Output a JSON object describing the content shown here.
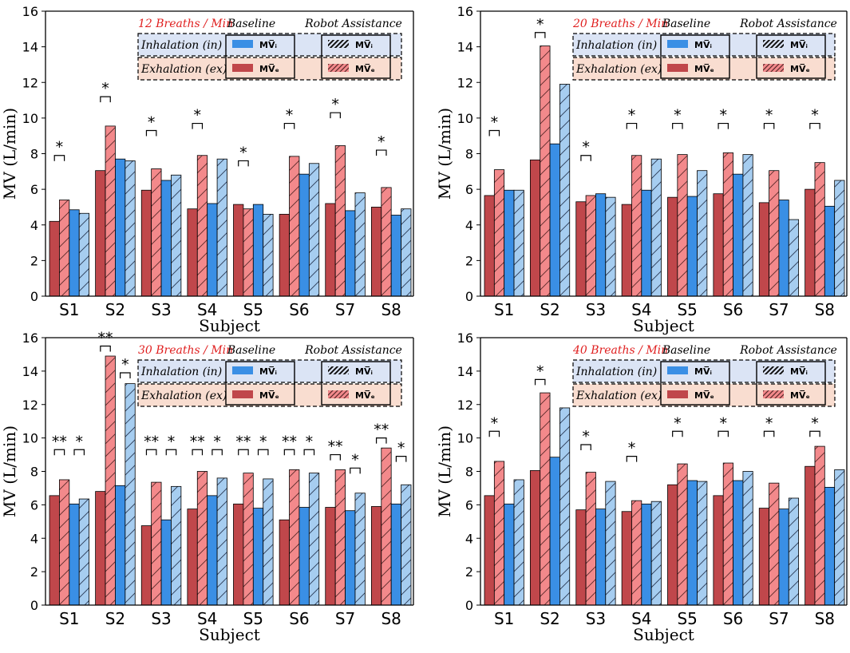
{
  "figure": {
    "axis": {
      "ylabel": "MV (L/min)",
      "xlabel": "Subject",
      "ylim": [
        0,
        16
      ],
      "yticks": [
        "0",
        "2",
        "4",
        "6",
        "8",
        "10",
        "12",
        "14",
        "16"
      ]
    },
    "legend": {
      "baseline": "Baseline",
      "robot": "Robot Assistance",
      "inhalation": "Inhalation (in)",
      "exhalation": "Exhalation (ex)",
      "mvi": "MV̅ᵢ",
      "mve": "MV̅ₑ"
    },
    "colors": {
      "exhalation": "#c0474b",
      "exhalation_robot": "#f3898b",
      "inhalation": "#3a8fe5",
      "inhalation_robot": "#a6cdf0",
      "inhalation_band": "#dbe4f5",
      "exhalation_band": "#f9ddd0",
      "title": "#e02020"
    }
  },
  "chart_data": [
    {
      "type": "bar",
      "title": "12 Breaths / Min",
      "xlabel": "Subject",
      "ylabel": "MV (L/min)",
      "ylim": [
        0,
        16
      ],
      "categories": [
        "S1",
        "S2",
        "S3",
        "S4",
        "S5",
        "S6",
        "S7",
        "S8"
      ],
      "series": [
        {
          "name": "Baseline MVe",
          "values": [
            4.2,
            7.05,
            5.95,
            4.9,
            5.15,
            4.6,
            5.2,
            5.0
          ]
        },
        {
          "name": "Robot Assistance MVe",
          "values": [
            5.4,
            9.55,
            7.15,
            7.9,
            4.9,
            7.85,
            8.45,
            6.1
          ]
        },
        {
          "name": "Baseline MVi",
          "values": [
            4.85,
            7.7,
            6.5,
            5.2,
            5.15,
            6.85,
            4.8,
            4.55
          ]
        },
        {
          "name": "Robot Assistance MVi",
          "values": [
            4.65,
            7.6,
            6.8,
            7.7,
            4.6,
            7.45,
            5.8,
            4.9
          ]
        }
      ],
      "annotations": [
        {
          "subject": "S1",
          "pair": "ex",
          "label": "*",
          "level": 7.9
        },
        {
          "subject": "S2",
          "pair": "ex",
          "label": "*",
          "level": 11.2
        },
        {
          "subject": "S3",
          "pair": "ex",
          "label": "*",
          "level": 9.3
        },
        {
          "subject": "S4",
          "pair": "ex",
          "label": "*",
          "level": 9.7
        },
        {
          "subject": "S5",
          "pair": "ex",
          "label": "*",
          "level": 7.6
        },
        {
          "subject": "S6",
          "pair": "ex",
          "label": "*",
          "level": 9.7
        },
        {
          "subject": "S7",
          "pair": "ex",
          "label": "*",
          "level": 10.3
        },
        {
          "subject": "S8",
          "pair": "ex",
          "label": "*",
          "level": 8.2
        }
      ]
    },
    {
      "type": "bar",
      "title": "20 Breaths / Min",
      "xlabel": "Subject",
      "ylabel": "MV (L/min)",
      "ylim": [
        0,
        16
      ],
      "categories": [
        "S1",
        "S2",
        "S3",
        "S4",
        "S5",
        "S6",
        "S7",
        "S8"
      ],
      "series": [
        {
          "name": "Baseline MVe",
          "values": [
            5.65,
            7.65,
            5.3,
            5.15,
            5.55,
            5.75,
            5.25,
            6.0
          ]
        },
        {
          "name": "Robot Assistance MVe",
          "values": [
            7.1,
            14.05,
            5.65,
            7.9,
            7.95,
            8.05,
            7.05,
            7.5
          ]
        },
        {
          "name": "Baseline MVi",
          "values": [
            5.95,
            8.55,
            5.75,
            5.95,
            5.6,
            6.85,
            5.4,
            5.05
          ]
        },
        {
          "name": "Robot Assistance MVi",
          "values": [
            5.95,
            11.9,
            5.55,
            7.7,
            7.05,
            7.95,
            4.3,
            6.5
          ]
        }
      ],
      "annotations": [
        {
          "subject": "S1",
          "pair": "ex",
          "label": "*",
          "level": 9.3
        },
        {
          "subject": "S2",
          "pair": "ex",
          "label": "*",
          "level": 14.8
        },
        {
          "subject": "S3",
          "pair": "ex",
          "label": "*",
          "level": 7.9
        },
        {
          "subject": "S4",
          "pair": "ex",
          "label": "*",
          "level": 9.7
        },
        {
          "subject": "S5",
          "pair": "ex",
          "label": "*",
          "level": 9.7
        },
        {
          "subject": "S6",
          "pair": "ex",
          "label": "*",
          "level": 9.7
        },
        {
          "subject": "S7",
          "pair": "ex",
          "label": "*",
          "level": 9.7
        },
        {
          "subject": "S8",
          "pair": "ex",
          "label": "*",
          "level": 9.7
        }
      ]
    },
    {
      "type": "bar",
      "title": "30 Breaths / Min",
      "xlabel": "Subject",
      "ylabel": "MV (L/min)",
      "ylim": [
        0,
        16
      ],
      "categories": [
        "S1",
        "S2",
        "S3",
        "S4",
        "S5",
        "S6",
        "S7",
        "S8"
      ],
      "series": [
        {
          "name": "Baseline MVe",
          "values": [
            6.55,
            6.8,
            4.75,
            5.75,
            6.05,
            5.1,
            5.85,
            5.9
          ]
        },
        {
          "name": "Robot Assistance MVe",
          "values": [
            7.5,
            14.9,
            7.35,
            8.0,
            7.9,
            8.1,
            8.1,
            9.4
          ]
        },
        {
          "name": "Baseline MVi",
          "values": [
            6.05,
            7.15,
            5.1,
            6.55,
            5.8,
            5.85,
            5.65,
            6.05
          ]
        },
        {
          "name": "Robot Assistance MVi",
          "values": [
            6.35,
            13.25,
            7.1,
            7.6,
            7.55,
            7.9,
            6.7,
            7.2
          ]
        }
      ],
      "annotations": [
        {
          "subject": "S1",
          "pair": "ex",
          "label": "**",
          "level": 9.3
        },
        {
          "subject": "S1",
          "pair": "in",
          "label": "*",
          "level": 9.3
        },
        {
          "subject": "S2",
          "pair": "ex",
          "label": "**",
          "level": 15.5
        },
        {
          "subject": "S2",
          "pair": "in",
          "label": "*",
          "level": 13.9
        },
        {
          "subject": "S3",
          "pair": "ex",
          "label": "**",
          "level": 9.3
        },
        {
          "subject": "S3",
          "pair": "in",
          "label": "*",
          "level": 9.3
        },
        {
          "subject": "S4",
          "pair": "ex",
          "label": "**",
          "level": 9.3
        },
        {
          "subject": "S4",
          "pair": "in",
          "label": "*",
          "level": 9.3
        },
        {
          "subject": "S5",
          "pair": "ex",
          "label": "**",
          "level": 9.3
        },
        {
          "subject": "S5",
          "pair": "in",
          "label": "*",
          "level": 9.3
        },
        {
          "subject": "S6",
          "pair": "ex",
          "label": "**",
          "level": 9.3
        },
        {
          "subject": "S6",
          "pair": "in",
          "label": "*",
          "level": 9.3
        },
        {
          "subject": "S7",
          "pair": "ex",
          "label": "**",
          "level": 9.0
        },
        {
          "subject": "S7",
          "pair": "in",
          "label": "*",
          "level": 8.2
        },
        {
          "subject": "S8",
          "pair": "ex",
          "label": "**",
          "level": 10.0
        },
        {
          "subject": "S8",
          "pair": "in",
          "label": "*",
          "level": 8.9
        }
      ]
    },
    {
      "type": "bar",
      "title": "40 Breaths / Min",
      "xlabel": "Subject",
      "ylabel": "MV (L/min)",
      "ylim": [
        0,
        16
      ],
      "categories": [
        "S1",
        "S2",
        "S3",
        "S4",
        "S5",
        "S6",
        "S7",
        "S8"
      ],
      "series": [
        {
          "name": "Baseline MVe",
          "values": [
            6.55,
            8.05,
            5.7,
            5.6,
            7.2,
            6.55,
            5.8,
            8.3
          ]
        },
        {
          "name": "Robot Assistance MVe",
          "values": [
            8.6,
            12.7,
            7.95,
            6.25,
            8.45,
            8.5,
            7.3,
            9.5
          ]
        },
        {
          "name": "Baseline MVi",
          "values": [
            6.05,
            8.85,
            5.75,
            6.05,
            7.45,
            7.45,
            5.75,
            7.05
          ]
        },
        {
          "name": "Robot Assistance MVi",
          "values": [
            7.5,
            11.8,
            7.4,
            6.2,
            7.4,
            8.0,
            6.4,
            8.1
          ]
        }
      ],
      "annotations": [
        {
          "subject": "S1",
          "pair": "ex",
          "label": "*",
          "level": 10.4
        },
        {
          "subject": "S2",
          "pair": "ex",
          "label": "*",
          "level": 13.5
        },
        {
          "subject": "S3",
          "pair": "ex",
          "label": "*",
          "level": 9.6
        },
        {
          "subject": "S4",
          "pair": "ex",
          "label": "*",
          "level": 8.9
        },
        {
          "subject": "S5",
          "pair": "ex",
          "label": "*",
          "level": 10.4
        },
        {
          "subject": "S6",
          "pair": "ex",
          "label": "*",
          "level": 10.4
        },
        {
          "subject": "S7",
          "pair": "ex",
          "label": "*",
          "level": 10.4
        },
        {
          "subject": "S8",
          "pair": "ex",
          "label": "*",
          "level": 10.4
        }
      ]
    }
  ]
}
